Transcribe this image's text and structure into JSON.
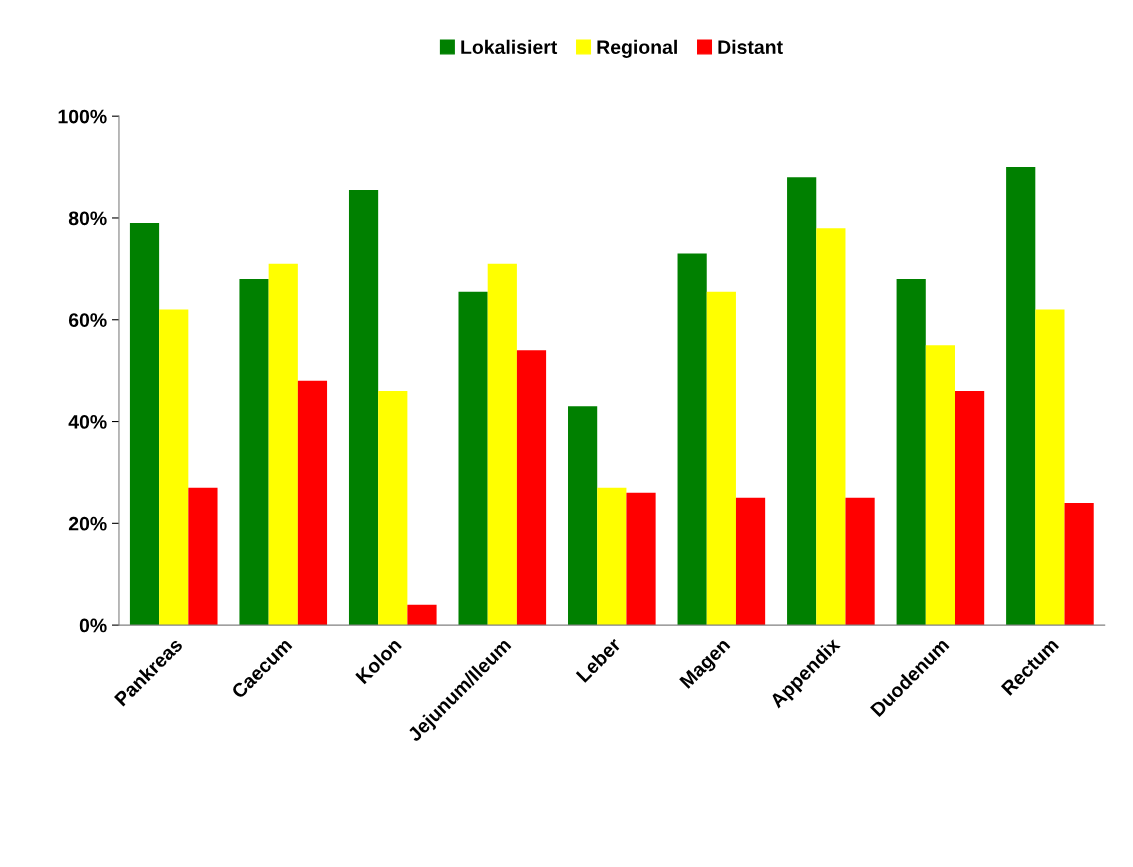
{
  "chart_data": {
    "type": "bar",
    "categories": [
      "Pankreas",
      "Caecum",
      "Kolon",
      "Jejunum/Ileum",
      "Leber",
      "Magen",
      "Appendix",
      "Duodenum",
      "Rectum"
    ],
    "series": [
      {
        "name": "Lokalisiert",
        "color": "#008000",
        "values": [
          79,
          68,
          85.5,
          65.5,
          43,
          73,
          88,
          68,
          90
        ]
      },
      {
        "name": "Regional",
        "color": "#ffff00",
        "values": [
          62,
          71,
          46,
          71,
          27,
          65.5,
          78,
          55,
          62
        ]
      },
      {
        "name": "Distant",
        "color": "#ff0000",
        "values": [
          27,
          48,
          4,
          54,
          26,
          25,
          25,
          46,
          24
        ]
      }
    ],
    "ylim": [
      0,
      100
    ],
    "yticks": [
      {
        "value": 0,
        "label": "0%"
      },
      {
        "value": 20,
        "label": "20%"
      },
      {
        "value": 40,
        "label": "40%"
      },
      {
        "value": 60,
        "label": "60%"
      },
      {
        "value": 80,
        "label": "80%"
      },
      {
        "value": 100,
        "label": "100%"
      }
    ],
    "grid": false,
    "legend": "top"
  }
}
